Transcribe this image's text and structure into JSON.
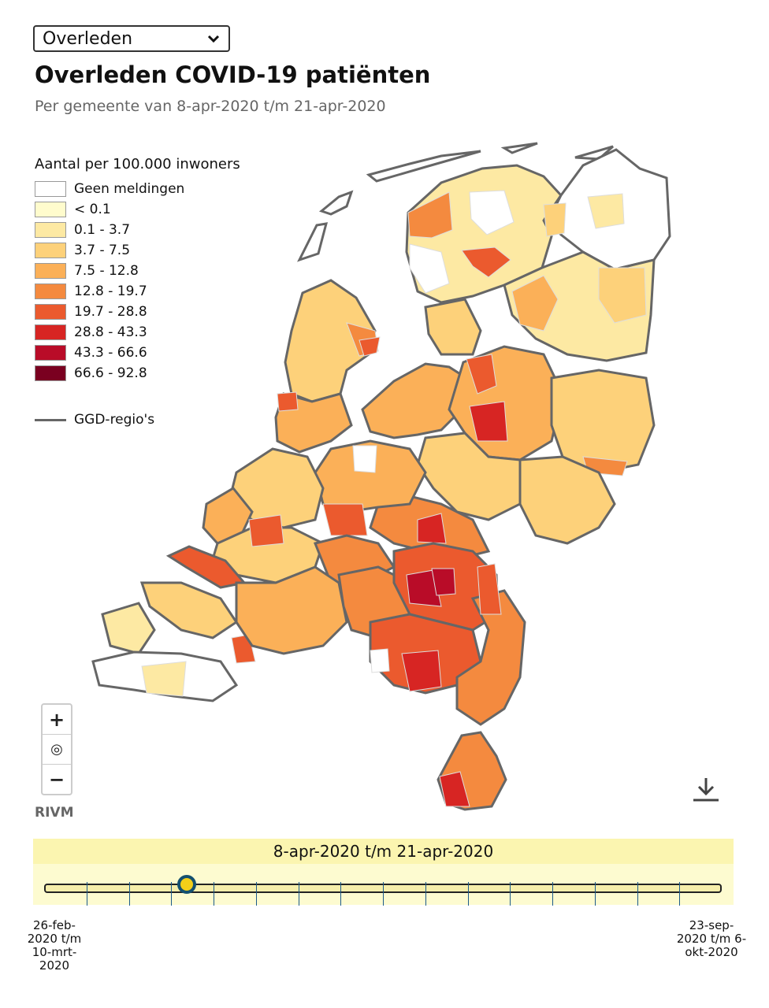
{
  "metric_select": {
    "value": "Overleden"
  },
  "title": "Overleden COVID-19 patiënten",
  "subtitle": "Per gemeente van 8-apr-2020 t/m 21-apr-2020",
  "legend": {
    "title": "Aantal per 100.000 inwoners",
    "items": [
      {
        "label": "Geen meldingen",
        "color": "#ffffff"
      },
      {
        "label": "< 0.1",
        "color": "#fffccd"
      },
      {
        "label": "0.1 - 3.7",
        "color": "#fde9a3"
      },
      {
        "label": "3.7 - 7.5",
        "color": "#fdd17a"
      },
      {
        "label": "7.5 - 12.8",
        "color": "#fbb058"
      },
      {
        "label": "12.8 - 19.7",
        "color": "#f48a3f"
      },
      {
        "label": "19.7 - 28.8",
        "color": "#eb5a2e"
      },
      {
        "label": "28.8 - 43.3",
        "color": "#d72523"
      },
      {
        "label": "43.3 - 66.6",
        "color": "#b90c28"
      },
      {
        "label": "66.6 - 92.8",
        "color": "#7a0020"
      }
    ],
    "ggd_label": "GGD-regio's"
  },
  "zoom": {
    "in": "+",
    "reset": "◎",
    "out": "−"
  },
  "attribution": "RIVM",
  "timeline": {
    "current_label": "8-apr-2020 t/m 21-apr-2020",
    "start_label": "26-feb-2020 t/m 10-mrt-2020",
    "end_label": "23-sep-2020 t/m 6-okt-2020",
    "position_fraction": 0.21,
    "start_lines": [
      "26-feb-",
      "2020 t/m",
      "10-mrt-",
      "2020"
    ],
    "end_lines": [
      "23-sep-",
      "2020 t/m 6-",
      "okt-2020"
    ]
  }
}
